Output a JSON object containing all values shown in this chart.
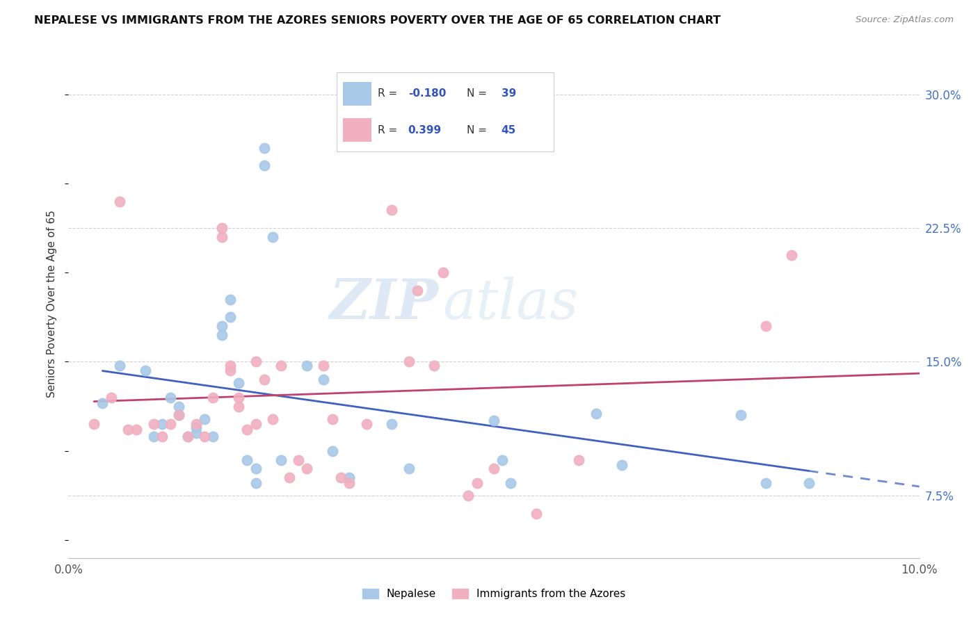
{
  "title": "NEPALESE VS IMMIGRANTS FROM THE AZORES SENIORS POVERTY OVER THE AGE OF 65 CORRELATION CHART",
  "source": "Source: ZipAtlas.com",
  "ylabel": "Seniors Poverty Over the Age of 65",
  "watermark_zip": "ZIP",
  "watermark_atlas": "atlas",
  "legend_labels": [
    "Nepalese",
    "Immigrants from the Azores"
  ],
  "blue_r": "-0.180",
  "blue_n": "39",
  "pink_r": "0.399",
  "pink_n": "45",
  "blue_scatter_color": "#a8c8e8",
  "pink_scatter_color": "#f0b0c0",
  "blue_line_color": "#4060c0",
  "pink_line_color": "#c04070",
  "ytick_values": [
    0.075,
    0.15,
    0.225,
    0.3
  ],
  "ytick_labels": [
    "7.5%",
    "15.0%",
    "22.5%",
    "30.0%"
  ],
  "xtick_values": [
    0.0,
    0.02,
    0.04,
    0.06,
    0.08,
    0.1
  ],
  "xtick_labels": [
    "0.0%",
    "",
    "",
    "",
    "",
    "10.0%"
  ],
  "xlim": [
    0.0,
    0.1
  ],
  "ylim": [
    0.04,
    0.325
  ],
  "blue_scatter_x": [
    0.004,
    0.006,
    0.009,
    0.01,
    0.011,
    0.012,
    0.013,
    0.013,
    0.014,
    0.015,
    0.015,
    0.016,
    0.017,
    0.018,
    0.018,
    0.019,
    0.019,
    0.02,
    0.021,
    0.022,
    0.022,
    0.023,
    0.023,
    0.024,
    0.025,
    0.028,
    0.03,
    0.031,
    0.033,
    0.038,
    0.04,
    0.05,
    0.051,
    0.052,
    0.062,
    0.065,
    0.079,
    0.082,
    0.087
  ],
  "blue_scatter_y": [
    0.127,
    0.148,
    0.145,
    0.108,
    0.115,
    0.13,
    0.12,
    0.125,
    0.108,
    0.11,
    0.113,
    0.118,
    0.108,
    0.165,
    0.17,
    0.175,
    0.185,
    0.138,
    0.095,
    0.082,
    0.09,
    0.27,
    0.26,
    0.22,
    0.095,
    0.148,
    0.14,
    0.1,
    0.085,
    0.115,
    0.09,
    0.117,
    0.095,
    0.082,
    0.121,
    0.092,
    0.12,
    0.082,
    0.082
  ],
  "pink_scatter_x": [
    0.003,
    0.005,
    0.006,
    0.007,
    0.008,
    0.01,
    0.011,
    0.012,
    0.013,
    0.014,
    0.015,
    0.016,
    0.017,
    0.018,
    0.018,
    0.019,
    0.019,
    0.02,
    0.02,
    0.021,
    0.022,
    0.022,
    0.023,
    0.024,
    0.025,
    0.026,
    0.027,
    0.028,
    0.03,
    0.031,
    0.032,
    0.033,
    0.035,
    0.038,
    0.04,
    0.041,
    0.043,
    0.044,
    0.047,
    0.048,
    0.05,
    0.055,
    0.06,
    0.082,
    0.085
  ],
  "pink_scatter_y": [
    0.115,
    0.13,
    0.24,
    0.112,
    0.112,
    0.115,
    0.108,
    0.115,
    0.12,
    0.108,
    0.115,
    0.108,
    0.13,
    0.22,
    0.225,
    0.148,
    0.145,
    0.125,
    0.13,
    0.112,
    0.115,
    0.15,
    0.14,
    0.118,
    0.148,
    0.085,
    0.095,
    0.09,
    0.148,
    0.118,
    0.085,
    0.082,
    0.115,
    0.235,
    0.15,
    0.19,
    0.148,
    0.2,
    0.075,
    0.082,
    0.09,
    0.065,
    0.095,
    0.17,
    0.21
  ]
}
